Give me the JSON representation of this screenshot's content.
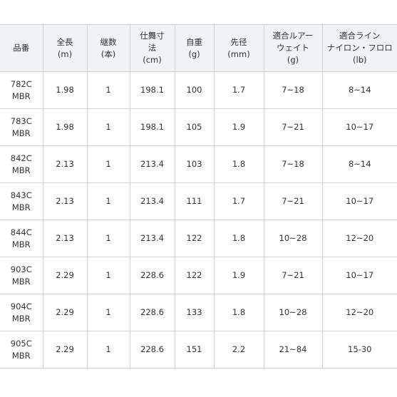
{
  "headers": [
    {
      "lines": [
        "品番"
      ]
    },
    {
      "lines": [
        "全長",
        "(m)"
      ]
    },
    {
      "lines": [
        "継数",
        "(本)"
      ]
    },
    {
      "lines": [
        "仕舞寸",
        "法",
        "(cm)"
      ]
    },
    {
      "lines": [
        "自重",
        "(g)"
      ]
    },
    {
      "lines": [
        "先径",
        "(mm)"
      ]
    },
    {
      "lines": [
        "適合ルアー",
        "ウェイト",
        "(g)"
      ]
    },
    {
      "lines": [
        "適合ライン",
        "ナイロン・フロロ",
        "(lb)"
      ]
    }
  ],
  "rows": [
    {
      "model": [
        "782C",
        "MBR"
      ],
      "cells": [
        "1.98",
        "1",
        "198.1",
        "100",
        "1.7",
        "7~18",
        "8~14"
      ]
    },
    {
      "model": [
        "783C",
        "MBR"
      ],
      "cells": [
        "1.98",
        "1",
        "198.1",
        "105",
        "1.9",
        "7~21",
        "10~17"
      ]
    },
    {
      "model": [
        "842C",
        "MBR"
      ],
      "cells": [
        "2.13",
        "1",
        "213.4",
        "103",
        "1.8",
        "7~18",
        "8~14"
      ]
    },
    {
      "model": [
        "843C",
        "MBR"
      ],
      "cells": [
        "2.13",
        "1",
        "213.4",
        "111",
        "1.7",
        "7~21",
        "10~17"
      ]
    },
    {
      "model": [
        "844C",
        "MBR"
      ],
      "cells": [
        "2.13",
        "1",
        "213.4",
        "122",
        "1.8",
        "10~28",
        "12~20"
      ]
    },
    {
      "model": [
        "903C",
        "MBR"
      ],
      "cells": [
        "2.29",
        "1",
        "228.6",
        "122",
        "1.9",
        "7~21",
        "10~17"
      ]
    },
    {
      "model": [
        "904C",
        "MBR"
      ],
      "cells": [
        "2.29",
        "1",
        "228.6",
        "133",
        "1.8",
        "10~28",
        "12~20"
      ]
    },
    {
      "model": [
        "905C",
        "MBR"
      ],
      "cells": [
        "2.29",
        "1",
        "228.6",
        "151",
        "2.2",
        "21~84",
        "15-30"
      ]
    }
  ]
}
